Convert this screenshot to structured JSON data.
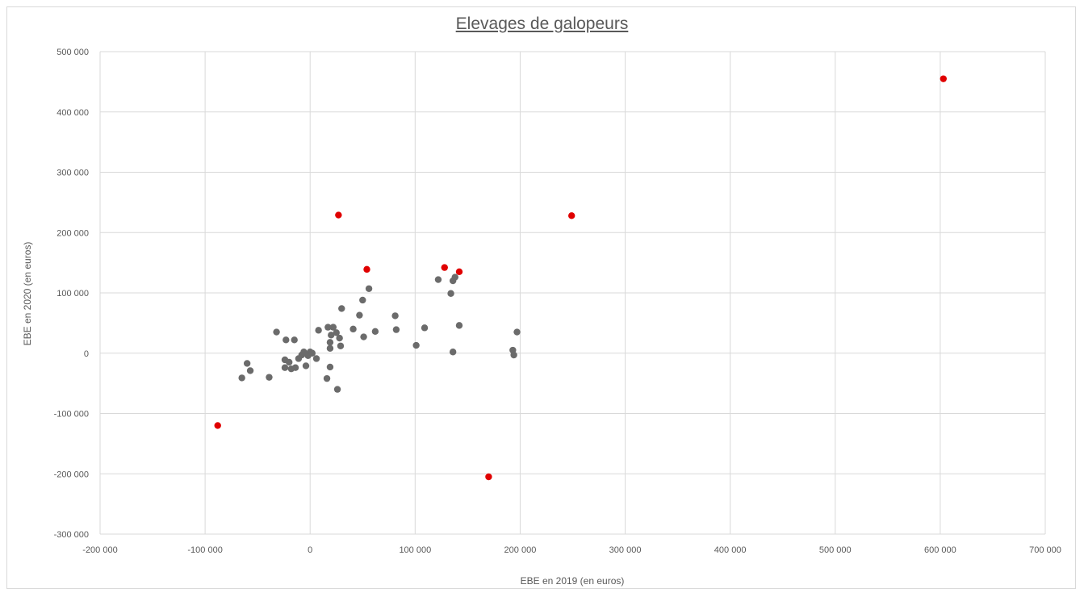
{
  "chart_data": {
    "type": "scatter",
    "title": "Elevages de galopeurs",
    "xlabel": "EBE en 2019 (en euros)",
    "ylabel": "EBE en 2020 (en euros)",
    "xlim": [
      -200000,
      700000
    ],
    "ylim": [
      -300000,
      500000
    ],
    "x_ticks": [
      -200000,
      -100000,
      0,
      100000,
      200000,
      300000,
      400000,
      500000,
      600000,
      700000
    ],
    "y_ticks": [
      -300000,
      -200000,
      -100000,
      0,
      100000,
      200000,
      300000,
      400000,
      500000
    ],
    "x_tick_labels": [
      "-200 000",
      "-100 000",
      "0",
      "100 000",
      "200 000",
      "300 000",
      "400 000",
      "500 000",
      "600 000",
      "700 000"
    ],
    "y_tick_labels": [
      "-300 000",
      "-200 000",
      "-100 000",
      "0",
      "100 000",
      "200 000",
      "300 000",
      "400 000",
      "500 000"
    ],
    "grid": true,
    "series": [
      {
        "color": "#6b6b6b",
        "points": [
          [
            -65000,
            -41000
          ],
          [
            -60000,
            -17000
          ],
          [
            -57000,
            -29000
          ],
          [
            -39000,
            -40000
          ],
          [
            -32000,
            35000
          ],
          [
            -24000,
            -24000
          ],
          [
            -24000,
            -11000
          ],
          [
            -23000,
            22000
          ],
          [
            -20000,
            -15000
          ],
          [
            -18000,
            -26000
          ],
          [
            -15000,
            22000
          ],
          [
            -14000,
            -24000
          ],
          [
            -11000,
            -9000
          ],
          [
            -8000,
            -3000
          ],
          [
            -6000,
            2000
          ],
          [
            -4000,
            -21000
          ],
          [
            -2000,
            -4000
          ],
          [
            0,
            2000
          ],
          [
            2000,
            0
          ],
          [
            6000,
            -9000
          ],
          [
            8000,
            38000
          ],
          [
            16000,
            -42000
          ],
          [
            17000,
            43000
          ],
          [
            19000,
            -23000
          ],
          [
            19000,
            8000
          ],
          [
            19000,
            18000
          ],
          [
            20000,
            30000
          ],
          [
            22000,
            43000
          ],
          [
            25000,
            34000
          ],
          [
            26000,
            -60000
          ],
          [
            28000,
            25000
          ],
          [
            29000,
            12000
          ],
          [
            30000,
            74000
          ],
          [
            41000,
            40000
          ],
          [
            47000,
            63000
          ],
          [
            50000,
            88000
          ],
          [
            51000,
            27000
          ],
          [
            56000,
            107000
          ],
          [
            62000,
            36000
          ],
          [
            81000,
            62000
          ],
          [
            82000,
            39000
          ],
          [
            101000,
            13000
          ],
          [
            109000,
            42000
          ],
          [
            122000,
            122000
          ],
          [
            134000,
            99000
          ],
          [
            136000,
            120000
          ],
          [
            136000,
            2000
          ],
          [
            138000,
            126000
          ],
          [
            142000,
            46000
          ],
          [
            193000,
            5000
          ],
          [
            194000,
            -3000
          ],
          [
            197000,
            35000
          ]
        ]
      },
      {
        "color": "#e00000",
        "points": [
          [
            -88000,
            -120000
          ],
          [
            27000,
            229000
          ],
          [
            54000,
            139000
          ],
          [
            128000,
            142000
          ],
          [
            142000,
            135000
          ],
          [
            170000,
            -205000
          ],
          [
            249000,
            228000
          ],
          [
            603000,
            455000
          ]
        ]
      }
    ]
  }
}
